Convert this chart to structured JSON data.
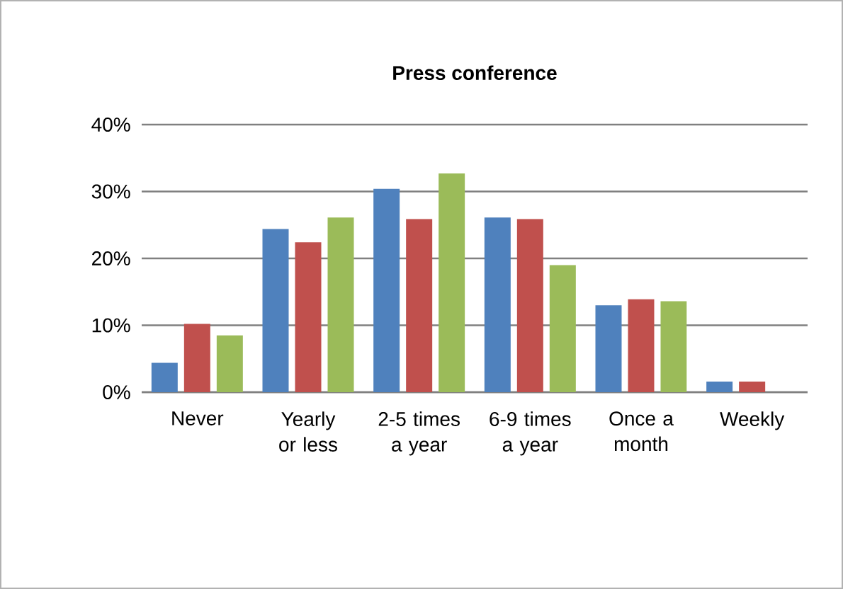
{
  "chart_data": {
    "type": "bar",
    "title": "Press conference",
    "categories": [
      "Never",
      "Yearly or less",
      "2-5 times a year",
      "6-9 times a year",
      "Once a month",
      "Weekly"
    ],
    "series": [
      {
        "color": "#4f81bd",
        "values": [
          4.4,
          24.4,
          30.4,
          26.1,
          13.0,
          1.6
        ]
      },
      {
        "color": "#c0504d",
        "values": [
          10.2,
          22.4,
          25.9,
          25.9,
          13.9,
          1.6
        ]
      },
      {
        "color": "#9bbb59",
        "values": [
          8.5,
          26.1,
          32.7,
          19.0,
          13.6,
          null
        ]
      }
    ],
    "ylim": [
      0,
      40
    ],
    "yticks": [
      {
        "value": 0,
        "label": "0%"
      },
      {
        "value": 10,
        "label": "10%"
      },
      {
        "value": 20,
        "label": "20%"
      },
      {
        "value": 30,
        "label": "30%"
      },
      {
        "value": 40,
        "label": "40%"
      }
    ],
    "grid": "y"
  }
}
